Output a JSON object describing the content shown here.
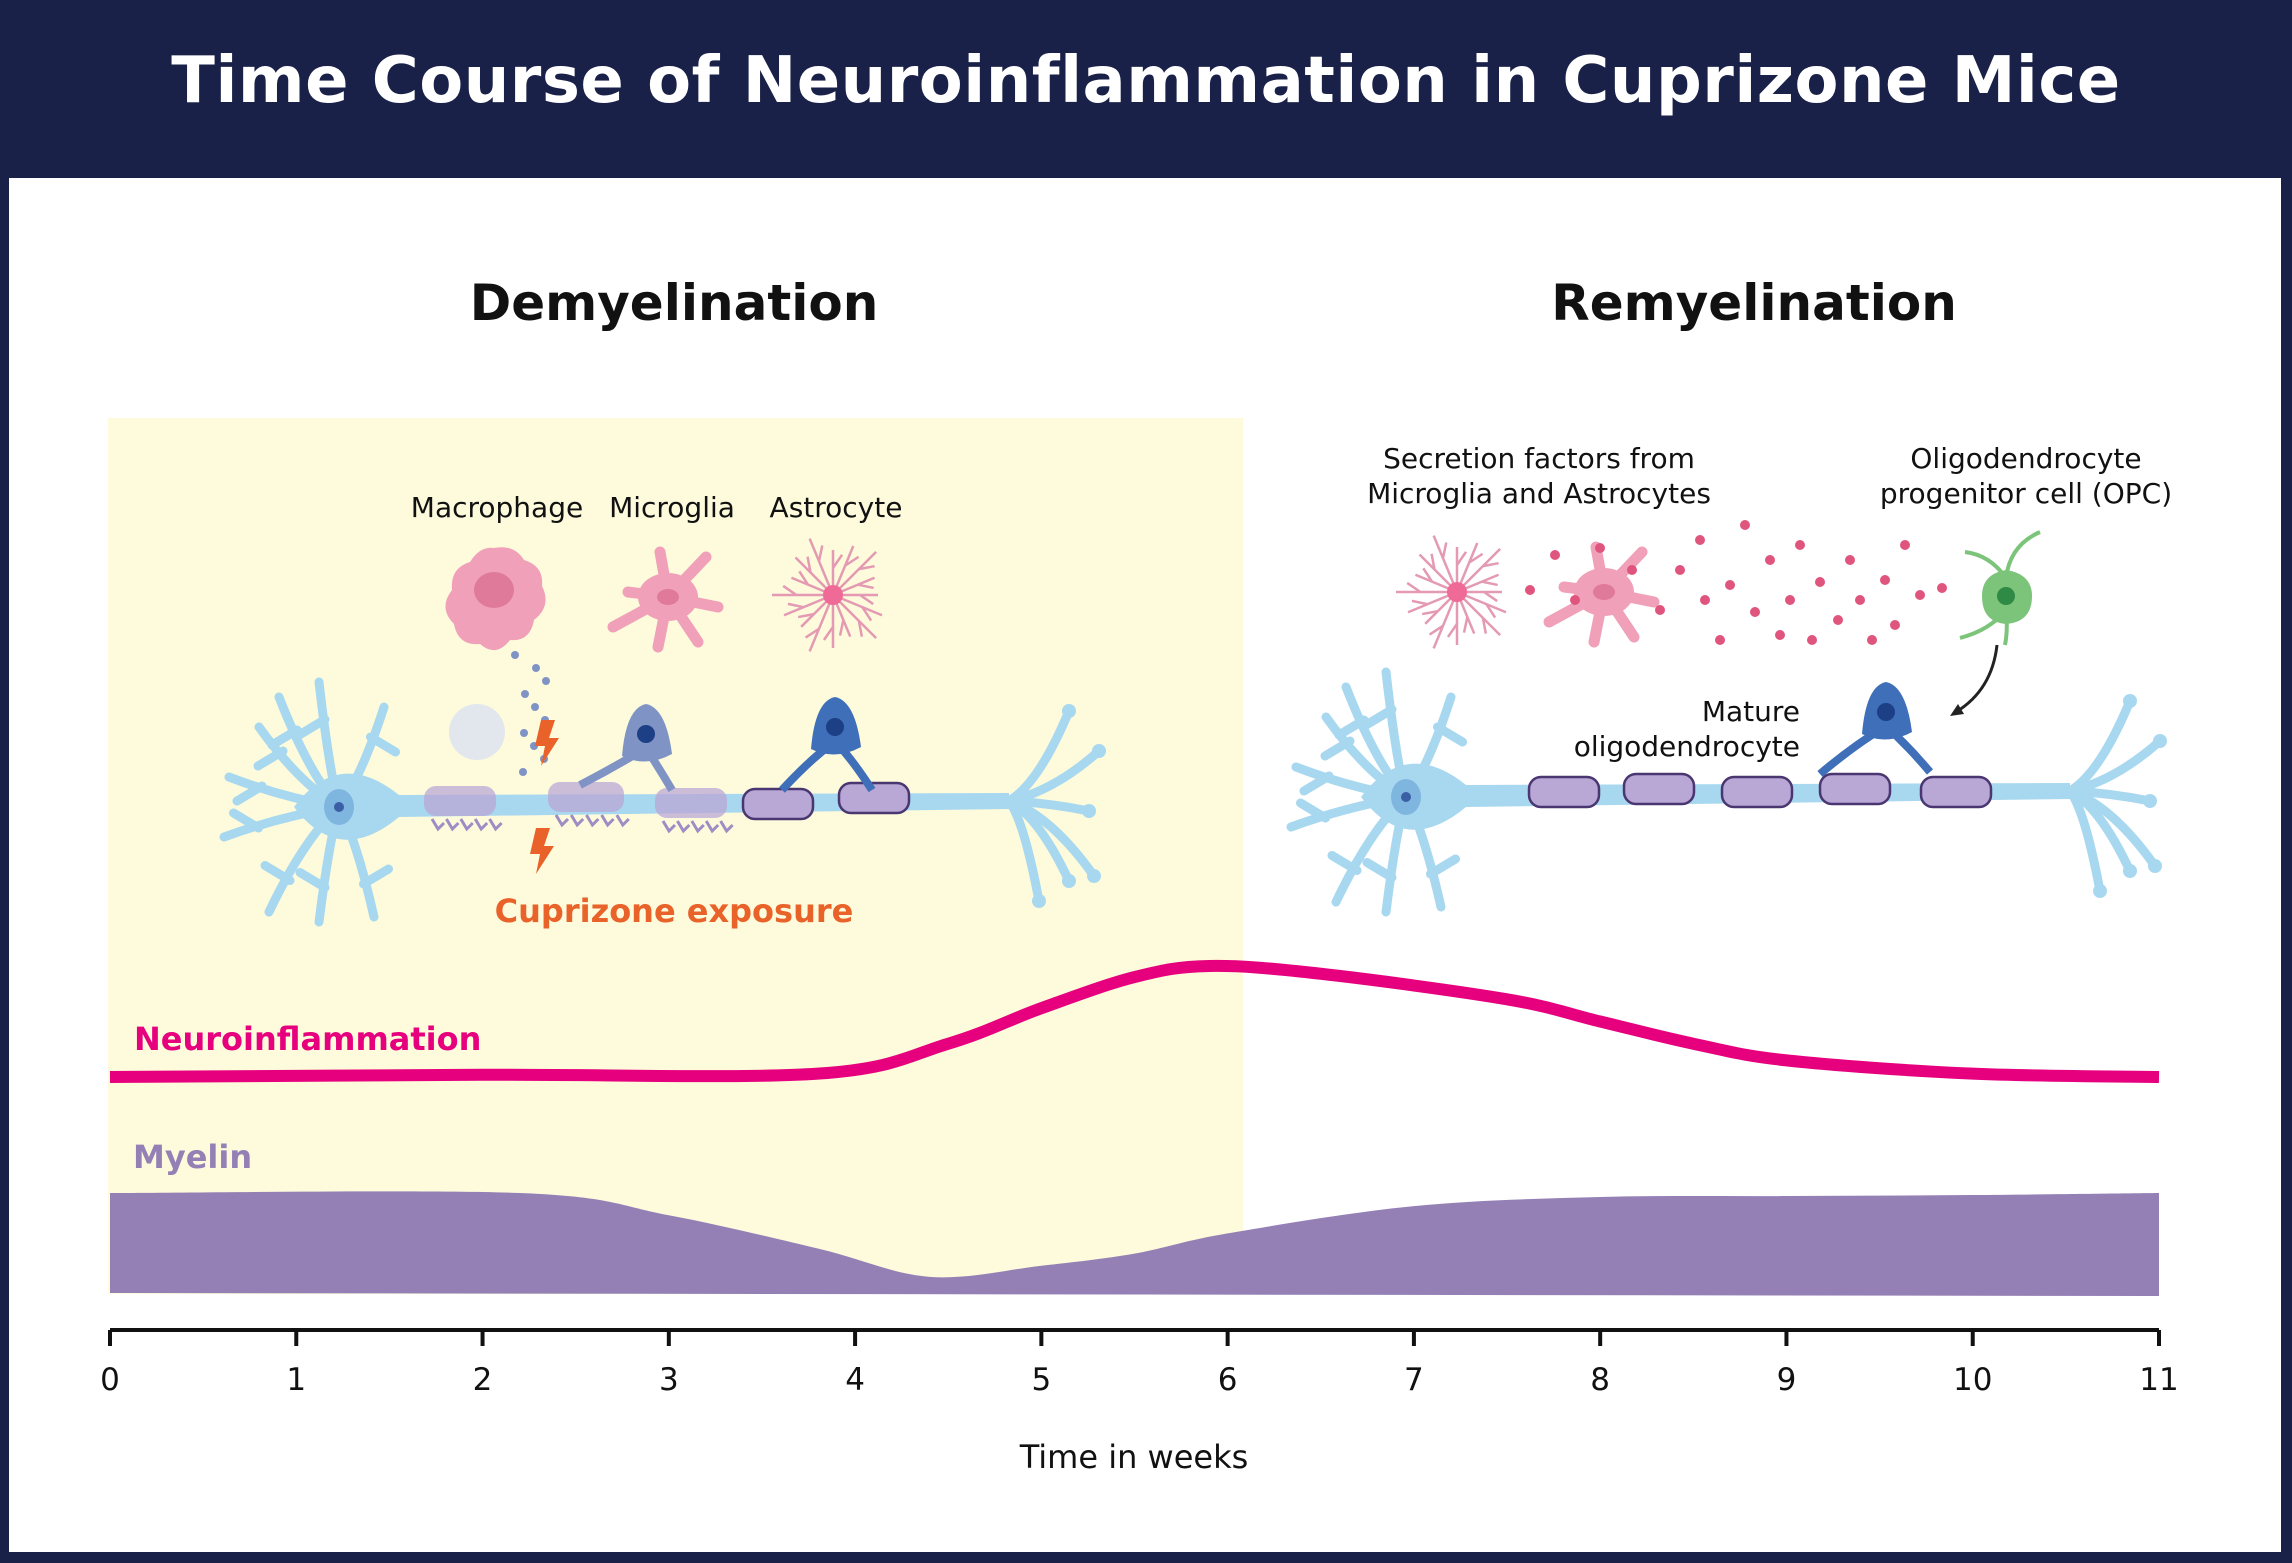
{
  "title": "Time Course of Neuroinflammation in Cuprizone Mice",
  "phases": {
    "left": "Demyelination",
    "right": "Remyelination"
  },
  "demyelination_panel": {
    "cell_labels": [
      "Macrophage",
      "Microglia",
      "Astrocyte"
    ],
    "exposure_label": "Cuprizone exposure"
  },
  "remyelination_panel": {
    "secretion_label": [
      "Secretion factors from",
      "Microglia and Astrocytes"
    ],
    "opc_label": [
      "Oligodendrocyte",
      "progenitor cell (OPC)"
    ],
    "mature_label": [
      "Mature",
      "oligodendrocyte"
    ]
  },
  "timeline": {
    "xlabel": "Time in weeks",
    "ticks": [
      "0",
      "1",
      "2",
      "3",
      "4",
      "5",
      "6",
      "7",
      "8",
      "9",
      "10",
      "11"
    ],
    "xlim": [
      0,
      11
    ],
    "demyelination_end_week": 6,
    "series": [
      {
        "name": "Neuroinflammation",
        "color": "#e6007e",
        "type": "line",
        "points": [
          [
            0,
            0
          ],
          [
            2,
            0.02
          ],
          [
            3.8,
            0.03
          ],
          [
            4.5,
            0.3
          ],
          [
            5,
            0.62
          ],
          [
            5.5,
            0.9
          ],
          [
            5.9,
            1.0
          ],
          [
            6.5,
            0.93
          ],
          [
            7.5,
            0.7
          ],
          [
            8,
            0.5
          ],
          [
            8.5,
            0.3
          ],
          [
            9,
            0.15
          ],
          [
            10,
            0.03
          ],
          [
            11,
            0
          ]
        ]
      },
      {
        "name": "Myelin",
        "color": "#9580b5",
        "type": "area",
        "points": [
          [
            0,
            1.0
          ],
          [
            2.2,
            1.0
          ],
          [
            3,
            0.78
          ],
          [
            3.8,
            0.45
          ],
          [
            4.4,
            0.17
          ],
          [
            5,
            0.28
          ],
          [
            5.5,
            0.4
          ],
          [
            6,
            0.6
          ],
          [
            7,
            0.87
          ],
          [
            8,
            0.96
          ],
          [
            9,
            0.97
          ],
          [
            10,
            0.98
          ],
          [
            11,
            1.0
          ]
        ]
      }
    ]
  },
  "colors": {
    "header": "#1a2148",
    "demyelination_bg": "#fdfbdc",
    "cuprizone": "#e8622a",
    "neuron": "#a8d8ef",
    "myelin_sheath": "#b9a7d6",
    "oligodendrocyte": "#3f6fb8",
    "glia": "#f0a0b8",
    "opc": "#7cc47a"
  }
}
